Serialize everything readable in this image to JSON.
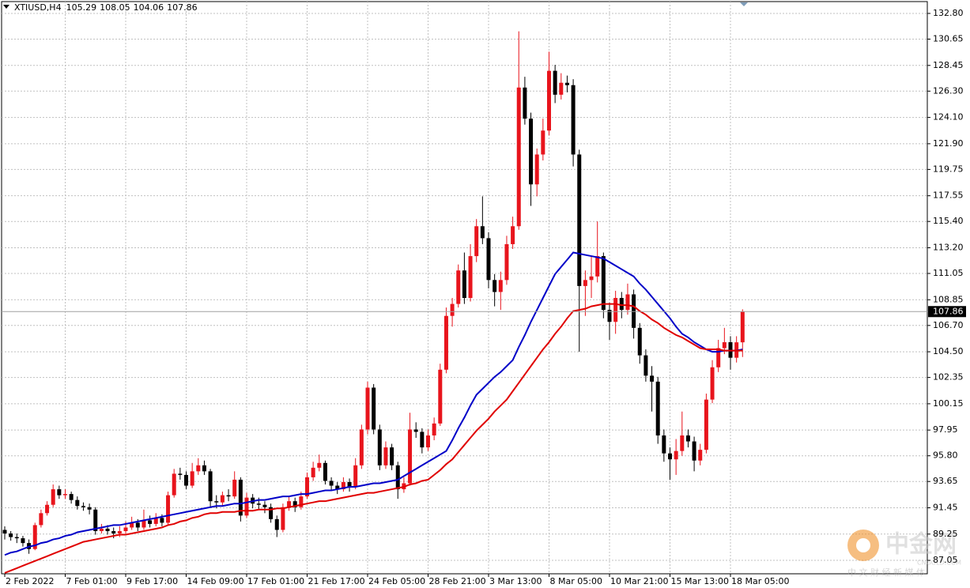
{
  "chart_data": {
    "type": "candlestick",
    "symbol": "XTIUSD,H4",
    "bull_color": "#e8141c",
    "bear_color": "#000000",
    "grid": true,
    "ylim": [
      85.93,
      133.79
    ],
    "yticks": [
      {
        "value": 132.8,
        "label": "132.80"
      },
      130.65,
      128.45,
      {
        "value": 126.3,
        "label": "126.30"
      },
      {
        "value": 124.1,
        "label": "124.10"
      },
      {
        "value": 121.9,
        "label": "121.90"
      },
      119.75,
      117.55,
      {
        "value": 115.4,
        "label": "115.40"
      },
      {
        "value": 113.2,
        "label": "113.20"
      },
      111.05,
      108.85,
      {
        "value": 106.7,
        "label": "106.70"
      },
      {
        "value": 104.5,
        "label": "104.50"
      },
      102.35,
      100.15,
      97.95,
      {
        "value": 95.8,
        "label": "95.80"
      },
      93.65,
      91.45,
      89.25,
      87.05
    ],
    "categories": [
      "2 Feb 2022",
      null,
      null,
      null,
      null,
      null,
      null,
      null,
      null,
      null,
      "7 Feb 01:00",
      null,
      null,
      null,
      null,
      null,
      null,
      null,
      null,
      null,
      "9 Feb 17:00",
      null,
      null,
      null,
      null,
      null,
      null,
      null,
      null,
      null,
      "14 Feb 09:00",
      null,
      null,
      null,
      null,
      null,
      null,
      null,
      null,
      null,
      "17 Feb 01:00",
      null,
      null,
      null,
      null,
      null,
      null,
      null,
      null,
      null,
      "21 Feb 17:00",
      null,
      null,
      null,
      null,
      null,
      null,
      null,
      null,
      null,
      "24 Feb 05:00",
      null,
      null,
      null,
      null,
      null,
      null,
      null,
      null,
      null,
      "28 Feb 21:00",
      null,
      null,
      null,
      null,
      null,
      null,
      null,
      null,
      null,
      "3 Mar 13:00",
      null,
      null,
      null,
      null,
      null,
      null,
      null,
      null,
      null,
      "8 Mar 05:00",
      null,
      null,
      null,
      null,
      null,
      null,
      null,
      null,
      null,
      "10 Mar 21:00",
      null,
      null,
      null,
      null,
      null,
      null,
      null,
      null,
      null,
      "15 Mar 13:00",
      null,
      null,
      null,
      null,
      null,
      null,
      null,
      null,
      null,
      "18 Mar 05:00",
      null,
      null
    ],
    "candles": [
      [
        89.6,
        89.9,
        88.8,
        89.3
      ],
      [
        89.3,
        89.5,
        88.7,
        89.0
      ],
      [
        89.0,
        89.3,
        88.5,
        88.9
      ],
      [
        88.9,
        89.1,
        88.2,
        88.5
      ],
      [
        88.5,
        88.8,
        87.6,
        88.0
      ],
      [
        88.0,
        90.2,
        87.9,
        90.0
      ],
      [
        90.0,
        91.3,
        89.8,
        91.0
      ],
      [
        91.0,
        92.0,
        90.8,
        91.7
      ],
      [
        91.7,
        93.4,
        91.5,
        93.0
      ],
      [
        93.0,
        93.3,
        92.2,
        92.5
      ],
      [
        92.5,
        93.0,
        92.2,
        92.6
      ],
      [
        92.6,
        92.8,
        91.8,
        92.1
      ],
      [
        92.1,
        92.4,
        91.3,
        91.6
      ],
      [
        91.6,
        91.9,
        91.2,
        91.5
      ],
      [
        91.5,
        91.8,
        90.9,
        91.3
      ],
      [
        91.3,
        91.5,
        89.2,
        89.5
      ],
      [
        89.5,
        90.1,
        89.3,
        89.7
      ],
      [
        89.7,
        90.0,
        89.2,
        89.5
      ],
      [
        89.5,
        89.8,
        88.9,
        89.3
      ],
      [
        89.3,
        89.9,
        89.0,
        89.5
      ],
      [
        89.5,
        90.3,
        89.3,
        89.8
      ],
      [
        89.8,
        90.7,
        89.6,
        90.2
      ],
      [
        90.2,
        90.5,
        89.5,
        89.8
      ],
      [
        89.8,
        91.3,
        89.6,
        90.4
      ],
      [
        90.4,
        90.8,
        89.8,
        90.1
      ],
      [
        90.1,
        91.0,
        89.9,
        90.6
      ],
      [
        90.6,
        90.9,
        89.9,
        90.2
      ],
      [
        90.2,
        92.8,
        90.0,
        92.5
      ],
      [
        92.5,
        94.7,
        92.3,
        94.3
      ],
      [
        94.3,
        94.8,
        93.8,
        94.2
      ],
      [
        94.2,
        94.5,
        93.0,
        93.3
      ],
      [
        93.3,
        95.2,
        93.1,
        94.5
      ],
      [
        94.5,
        95.6,
        94.2,
        95.0
      ],
      [
        95.0,
        95.4,
        94.2,
        94.5
      ],
      [
        94.5,
        94.7,
        91.5,
        92.0
      ],
      [
        92.0,
        92.5,
        91.4,
        91.9
      ],
      [
        91.9,
        92.8,
        91.6,
        92.5
      ],
      [
        92.5,
        93.0,
        92.0,
        92.4
      ],
      [
        92.4,
        94.5,
        92.2,
        93.8
      ],
      [
        93.8,
        94.0,
        90.3,
        90.8
      ],
      [
        90.8,
        92.7,
        90.6,
        92.3
      ],
      [
        92.3,
        92.6,
        91.4,
        91.8
      ],
      [
        91.8,
        92.3,
        91.3,
        91.7
      ],
      [
        91.7,
        92.0,
        91.0,
        91.5
      ],
      [
        91.5,
        91.8,
        90.2,
        90.5
      ],
      [
        90.5,
        90.8,
        89.0,
        89.6
      ],
      [
        89.6,
        91.8,
        89.4,
        91.5
      ],
      [
        91.5,
        92.4,
        91.2,
        92.0
      ],
      [
        92.0,
        92.3,
        91.1,
        91.5
      ],
      [
        91.5,
        92.8,
        91.3,
        92.4
      ],
      [
        92.4,
        94.4,
        92.2,
        94.0
      ],
      [
        94.0,
        95.3,
        93.7,
        94.8
      ],
      [
        94.8,
        95.9,
        94.5,
        95.2
      ],
      [
        95.2,
        95.4,
        93.4,
        93.7
      ],
      [
        93.7,
        94.0,
        92.9,
        93.3
      ],
      [
        93.3,
        93.6,
        92.6,
        93.0
      ],
      [
        93.0,
        94.0,
        92.8,
        93.6
      ],
      [
        93.6,
        93.9,
        92.8,
        93.2
      ],
      [
        93.2,
        95.6,
        93.0,
        95.0
      ],
      [
        95.0,
        98.4,
        94.7,
        98.0
      ],
      [
        98.0,
        102.0,
        97.6,
        101.5
      ],
      [
        101.5,
        101.8,
        97.6,
        98.0
      ],
      [
        98.0,
        98.4,
        94.6,
        95.0
      ],
      [
        95.0,
        97.0,
        94.7,
        96.5
      ],
      [
        96.5,
        96.8,
        94.6,
        95.0
      ],
      [
        95.0,
        95.3,
        92.2,
        93.0
      ],
      [
        93.0,
        94.0,
        92.7,
        93.5
      ],
      [
        93.5,
        99.4,
        93.3,
        98.0
      ],
      [
        98.0,
        98.6,
        97.3,
        97.8
      ],
      [
        97.8,
        98.1,
        96.0,
        96.5
      ],
      [
        96.5,
        98.0,
        96.2,
        97.5
      ],
      [
        97.5,
        99.0,
        97.1,
        98.5
      ],
      [
        98.5,
        103.5,
        98.3,
        103.0
      ],
      [
        103.0,
        108.2,
        102.7,
        107.5
      ],
      [
        107.5,
        109.0,
        106.6,
        108.5
      ],
      [
        108.5,
        111.8,
        108.2,
        111.3
      ],
      [
        111.3,
        112.8,
        108.5,
        109.0
      ],
      [
        109.0,
        113.5,
        108.7,
        112.5
      ],
      [
        112.5,
        115.6,
        112.0,
        115.0
      ],
      [
        115.0,
        117.5,
        113.5,
        114.0
      ],
      [
        114.0,
        114.5,
        109.8,
        110.5
      ],
      [
        110.5,
        111.0,
        108.3,
        109.5
      ],
      [
        109.5,
        111.2,
        108.0,
        110.5
      ],
      [
        110.5,
        114.2,
        110.1,
        113.5
      ],
      [
        113.5,
        115.8,
        113.1,
        115.0
      ],
      [
        115.0,
        131.3,
        114.7,
        126.6
      ],
      [
        126.6,
        127.5,
        123.5,
        124.0
      ],
      [
        124.0,
        124.5,
        116.7,
        118.5
      ],
      [
        118.5,
        121.5,
        117.5,
        121.0
      ],
      [
        121.0,
        124.0,
        120.5,
        123.0
      ],
      [
        123.0,
        129.6,
        122.6,
        128.0
      ],
      [
        128.0,
        128.5,
        125.3,
        126.0
      ],
      [
        126.0,
        127.8,
        125.6,
        127.0
      ],
      [
        127.0,
        127.6,
        126.2,
        126.8
      ],
      [
        126.8,
        127.3,
        120.0,
        121.0
      ],
      [
        121.0,
        121.4,
        104.5,
        110.0
      ],
      [
        110.0,
        111.3,
        107.5,
        110.5
      ],
      [
        110.5,
        112.5,
        109.0,
        110.8
      ],
      [
        110.8,
        115.4,
        110.3,
        112.5
      ],
      [
        112.5,
        112.8,
        107.3,
        108.0
      ],
      [
        108.0,
        108.6,
        105.5,
        107.0
      ],
      [
        107.0,
        109.6,
        106.0,
        109.0
      ],
      [
        109.0,
        109.5,
        107.3,
        108.0
      ],
      [
        108.0,
        110.2,
        107.6,
        109.3
      ],
      [
        109.3,
        109.7,
        105.6,
        106.5
      ],
      [
        106.5,
        106.9,
        103.5,
        104.2
      ],
      [
        104.2,
        104.7,
        102.0,
        102.5
      ],
      [
        102.5,
        103.3,
        99.5,
        102.0
      ],
      [
        102.0,
        102.4,
        96.8,
        97.5
      ],
      [
        97.5,
        98.0,
        95.3,
        96.0
      ],
      [
        96.0,
        96.5,
        93.8,
        95.5
      ],
      [
        95.5,
        97.2,
        94.2,
        96.2
      ],
      [
        96.2,
        99.5,
        95.8,
        97.5
      ],
      [
        97.5,
        98.0,
        96.5,
        97.0
      ],
      [
        97.0,
        97.4,
        94.5,
        95.4
      ],
      [
        95.4,
        96.8,
        95.0,
        96.3
      ],
      [
        96.3,
        101.0,
        96.0,
        100.5
      ],
      [
        100.5,
        103.8,
        100.2,
        103.2
      ],
      [
        103.2,
        105.5,
        102.8,
        104.8
      ],
      [
        104.8,
        106.5,
        104.3,
        105.3
      ],
      [
        105.3,
        105.8,
        103.0,
        104.0
      ],
      [
        104.0,
        105.8,
        103.6,
        105.29
      ],
      [
        105.29,
        108.05,
        104.06,
        107.86
      ]
    ],
    "overlays": [
      {
        "color": "#0000c8",
        "values": [
          87.5,
          87.7,
          87.8,
          88.0,
          88.2,
          88.3,
          88.5,
          88.6,
          88.8,
          88.9,
          89.1,
          89.2,
          89.4,
          89.5,
          89.6,
          89.7,
          89.8,
          89.9,
          90.0,
          90.0,
          90.1,
          90.2,
          90.3,
          90.4,
          90.5,
          90.6,
          90.7,
          90.8,
          90.9,
          91.0,
          91.1,
          91.2,
          91.3,
          91.4,
          91.5,
          91.6,
          91.6,
          91.7,
          91.8,
          91.8,
          91.9,
          92.0,
          92.1,
          92.1,
          92.2,
          92.3,
          92.4,
          92.4,
          92.5,
          92.6,
          92.6,
          92.7,
          92.8,
          92.9,
          92.9,
          93.0,
          93.1,
          93.2,
          93.2,
          93.3,
          93.4,
          93.5,
          93.5,
          93.6,
          93.7,
          93.8,
          94.1,
          94.4,
          94.7,
          95.0,
          95.3,
          95.6,
          95.9,
          96.2,
          97.1,
          98.1,
          99.0,
          100.0,
          100.9,
          101.4,
          101.9,
          102.4,
          102.8,
          103.3,
          103.8,
          104.9,
          105.9,
          107.0,
          108.0,
          109.0,
          110.0,
          111.0,
          111.6,
          112.2,
          112.8,
          112.7,
          112.6,
          112.5,
          112.4,
          112.3,
          112.0,
          111.7,
          111.4,
          111.1,
          110.8,
          110.2,
          109.7,
          109.1,
          108.5,
          107.9,
          107.3,
          106.6,
          106.0,
          105.7,
          105.3,
          105.0,
          104.7,
          104.5,
          104.5,
          104.6,
          104.6,
          104.6,
          104.7
        ]
      },
      {
        "color": "#e00000",
        "values": [
          86.0,
          86.2,
          86.4,
          86.6,
          86.8,
          87.0,
          87.2,
          87.4,
          87.6,
          87.8,
          88.0,
          88.2,
          88.4,
          88.6,
          88.7,
          88.8,
          88.9,
          89.0,
          89.1,
          89.2,
          89.2,
          89.3,
          89.4,
          89.5,
          89.6,
          89.7,
          89.8,
          90.0,
          90.1,
          90.3,
          90.4,
          90.6,
          90.7,
          90.9,
          91.0,
          91.0,
          91.1,
          91.1,
          91.1,
          91.2,
          91.2,
          91.2,
          91.3,
          91.3,
          91.3,
          91.4,
          91.4,
          91.5,
          91.6,
          91.7,
          91.8,
          91.9,
          92.0,
          92.0,
          92.1,
          92.2,
          92.3,
          92.4,
          92.5,
          92.6,
          92.7,
          92.7,
          92.8,
          92.9,
          93.0,
          93.1,
          93.2,
          93.4,
          93.5,
          93.7,
          93.8,
          94.2,
          94.6,
          95.1,
          95.5,
          96.1,
          96.7,
          97.3,
          97.9,
          98.4,
          98.9,
          99.5,
          100.0,
          100.5,
          101.2,
          101.9,
          102.6,
          103.3,
          104.0,
          104.7,
          105.3,
          106.0,
          106.6,
          107.3,
          107.9,
          108.0,
          108.1,
          108.3,
          108.4,
          108.5,
          108.5,
          108.5,
          108.4,
          108.4,
          108.3,
          107.9,
          107.6,
          107.2,
          106.9,
          106.5,
          106.2,
          105.9,
          105.7,
          105.4,
          105.1,
          104.8,
          104.7,
          104.7,
          104.7,
          104.6,
          104.6,
          104.6,
          104.6
        ]
      }
    ],
    "watermark": {
      "name": "中金网",
      "site": "CNGOLD.COM",
      "slogan": "中 文 财 经 新 媒 体"
    }
  }
}
